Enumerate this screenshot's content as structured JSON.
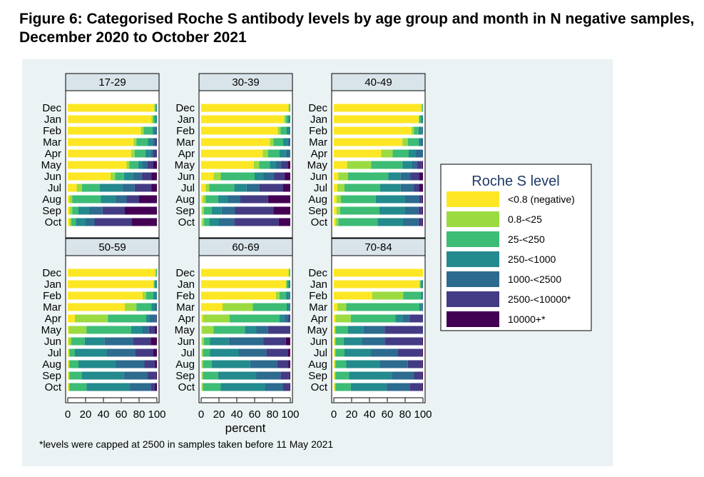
{
  "figure_title": "Figure 6: Categorised Roche S antibody levels by age group and month in N negative samples, December 2020 to October 2021",
  "footnote": "*levels were capped at 2500 in samples taken before 11 May 2021",
  "colors": [
    "#FDE725",
    "#9BDB41",
    "#3CBC75",
    "#238A8D",
    "#2D6B8F",
    "#433B84",
    "#440154"
  ],
  "chart_data": {
    "type": "bar",
    "orientation": "horizontal",
    "stacked": true,
    "xlabel": "percent",
    "xlim": [
      0,
      100
    ],
    "xticks": [
      0,
      20,
      40,
      60,
      80,
      100
    ],
    "categories": [
      "Dec",
      "Jan",
      "Feb",
      "Mar",
      "Apr",
      "May",
      "Jun",
      "Jul",
      "Aug",
      "Sep",
      "Oct"
    ],
    "legend": {
      "title": "Roche S level",
      "position": "right",
      "labels": [
        "<0.8 (negative)",
        "0.8-<25",
        "25-<250",
        "250-<1000",
        "1000-<2500",
        "2500-<10000*",
        "10000+*"
      ]
    },
    "panels": [
      {
        "label": "17-29",
        "values": [
          [
            97,
            1,
            1,
            1,
            0,
            0,
            0
          ],
          [
            94,
            2,
            2,
            2,
            0,
            0,
            0
          ],
          [
            82,
            3,
            10,
            3,
            2,
            0,
            0
          ],
          [
            74,
            3,
            13,
            5,
            3,
            2,
            0
          ],
          [
            71,
            4,
            12,
            6,
            3,
            4,
            0
          ],
          [
            66,
            3,
            10,
            5,
            5,
            7,
            4
          ],
          [
            48,
            5,
            10,
            10,
            10,
            11,
            6
          ],
          [
            10,
            6,
            20,
            25,
            14,
            19,
            6
          ],
          [
            2,
            3,
            32,
            16,
            13,
            14,
            20
          ],
          [
            2,
            3,
            7,
            12,
            15,
            25,
            36
          ],
          [
            2,
            2,
            5,
            11,
            10,
            42,
            28
          ]
        ]
      },
      {
        "label": "30-39",
        "values": [
          [
            98,
            1,
            1,
            0,
            0,
            0,
            0
          ],
          [
            93,
            2,
            3,
            2,
            0,
            0,
            0
          ],
          [
            86,
            3,
            7,
            4,
            0,
            0,
            0
          ],
          [
            77,
            4,
            11,
            5,
            3,
            0,
            0
          ],
          [
            69,
            6,
            13,
            7,
            5,
            0,
            0
          ],
          [
            59,
            6,
            12,
            7,
            6,
            7,
            3
          ],
          [
            14,
            8,
            38,
            10,
            12,
            12,
            6
          ],
          [
            5,
            4,
            28,
            14,
            14,
            27,
            8
          ],
          [
            2,
            3,
            14,
            11,
            14,
            31,
            25
          ],
          [
            1,
            2,
            9,
            11,
            15,
            43,
            19
          ],
          [
            1,
            2,
            6,
            11,
            17,
            50,
            13
          ]
        ]
      },
      {
        "label": "40-49",
        "values": [
          [
            98,
            1,
            1,
            0,
            0,
            0,
            0
          ],
          [
            95,
            1,
            2,
            2,
            0,
            0,
            0
          ],
          [
            87,
            3,
            5,
            4,
            1,
            0,
            0
          ],
          [
            77,
            6,
            12,
            3,
            2,
            0,
            0
          ],
          [
            53,
            13,
            18,
            8,
            8,
            0,
            0
          ],
          [
            15,
            27,
            35,
            10,
            6,
            6,
            1
          ],
          [
            5,
            11,
            45,
            14,
            11,
            10,
            4
          ],
          [
            4,
            8,
            40,
            23,
            15,
            6,
            4
          ],
          [
            3,
            5,
            39,
            33,
            16,
            3,
            1
          ],
          [
            3,
            4,
            44,
            29,
            15,
            4,
            1
          ],
          [
            2,
            3,
            44,
            29,
            17,
            4,
            1
          ]
        ]
      },
      {
        "label": "50-59",
        "values": [
          [
            98,
            1,
            1,
            0,
            0,
            0,
            0
          ],
          [
            96,
            1,
            1,
            2,
            0,
            0,
            0
          ],
          [
            84,
            4,
            8,
            4,
            0,
            0,
            0
          ],
          [
            64,
            13,
            17,
            4,
            2,
            0,
            0
          ],
          [
            8,
            37,
            43,
            4,
            7,
            1,
            0
          ],
          [
            1,
            20,
            50,
            13,
            7,
            7,
            2
          ],
          [
            1,
            3,
            15,
            22,
            32,
            20,
            7
          ],
          [
            1,
            1,
            6,
            36,
            32,
            20,
            4
          ],
          [
            1,
            1,
            10,
            42,
            32,
            12,
            2
          ],
          [
            1,
            1,
            14,
            47,
            26,
            10,
            1
          ],
          [
            1,
            1,
            19,
            48,
            24,
            5,
            2
          ]
        ]
      },
      {
        "label": "60-69",
        "values": [
          [
            98,
            1,
            1,
            0,
            0,
            0,
            0
          ],
          [
            95,
            1,
            2,
            2,
            0,
            0,
            0
          ],
          [
            84,
            4,
            7,
            4,
            1,
            0,
            0
          ],
          [
            24,
            34,
            38,
            3,
            1,
            0,
            0
          ],
          [
            2,
            30,
            56,
            5,
            5,
            2,
            0
          ],
          [
            1,
            13,
            35,
            13,
            13,
            25,
            0
          ],
          [
            1,
            2,
            7,
            21,
            39,
            25,
            5
          ],
          [
            1,
            1,
            8,
            32,
            31,
            24,
            3
          ],
          [
            1,
            1,
            10,
            43,
            30,
            13,
            2
          ],
          [
            1,
            1,
            17,
            43,
            27,
            10,
            1
          ],
          [
            1,
            1,
            20,
            50,
            20,
            7,
            1
          ]
        ]
      },
      {
        "label": "70-84",
        "values": [
          [
            100,
            0,
            0,
            0,
            0,
            0,
            0
          ],
          [
            96,
            1,
            1,
            2,
            0,
            0,
            0
          ],
          [
            43,
            35,
            20,
            2,
            0,
            0,
            0
          ],
          [
            4,
            10,
            82,
            3,
            1,
            0,
            0
          ],
          [
            2,
            17,
            50,
            8,
            8,
            15,
            0
          ],
          [
            1,
            1,
            14,
            17,
            24,
            43,
            0
          ],
          [
            1,
            1,
            9,
            21,
            25,
            42,
            1
          ],
          [
            1,
            1,
            10,
            30,
            30,
            27,
            1
          ],
          [
            1,
            1,
            12,
            38,
            31,
            16,
            1
          ],
          [
            1,
            1,
            15,
            48,
            25,
            9,
            1
          ],
          [
            1,
            1,
            17,
            40,
            26,
            14,
            1
          ]
        ]
      }
    ]
  }
}
